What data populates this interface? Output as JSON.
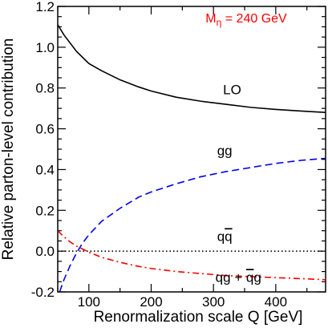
{
  "chart_data": {
    "type": "line",
    "annotation": {
      "text": "M",
      "subscript": "η",
      "suffix": " = 240 GeV",
      "color": "#ff0000"
    },
    "xlabel": "Renormalization scale Q  [GeV]",
    "ylabel": "Relative parton-level contribution",
    "xlim": [
      50,
      480
    ],
    "ylim": [
      -0.2,
      1.2
    ],
    "xticks": [
      100,
      200,
      300,
      400
    ],
    "xtick_labels": [
      "100",
      "200",
      "300",
      "400"
    ],
    "yticks": [
      -0.2,
      0.0,
      0.2,
      0.4,
      0.6,
      0.8,
      1.0,
      1.2
    ],
    "ytick_labels": [
      "-0.2",
      "0.0",
      "0.2",
      "0.4",
      "0.6",
      "0.8",
      "1.0",
      "1.2"
    ],
    "grid": false,
    "series": [
      {
        "name": "LO",
        "color": "#000000",
        "style": "solid",
        "x": [
          50,
          60,
          80,
          100,
          120,
          150,
          180,
          200,
          240,
          280,
          320,
          360,
          400,
          440,
          480
        ],
        "y": [
          1.11,
          1.06,
          0.98,
          0.92,
          0.885,
          0.84,
          0.805,
          0.785,
          0.755,
          0.735,
          0.72,
          0.705,
          0.695,
          0.687,
          0.68
        ]
      },
      {
        "name": "gg",
        "color": "#0000ee",
        "style": "dashed",
        "x": [
          53,
          60,
          70,
          80,
          90,
          100,
          120,
          150,
          180,
          200,
          240,
          280,
          320,
          360,
          400,
          440,
          480
        ],
        "y": [
          -0.2,
          -0.14,
          -0.07,
          -0.01,
          0.04,
          0.08,
          0.145,
          0.21,
          0.265,
          0.29,
          0.33,
          0.365,
          0.39,
          0.41,
          0.43,
          0.445,
          0.455
        ]
      },
      {
        "name": "qq̄",
        "color": "#000000",
        "style": "dotted",
        "x": [
          50,
          480
        ],
        "y": [
          0.0,
          0.0
        ]
      },
      {
        "name": "qg + q̄g",
        "color": "#ff0000",
        "style": "dashdot",
        "x": [
          50,
          60,
          70,
          80,
          90,
          100,
          120,
          150,
          180,
          200,
          240,
          280,
          320,
          360,
          400,
          440,
          480
        ],
        "y": [
          0.1,
          0.07,
          0.045,
          0.025,
          0.01,
          -0.005,
          -0.03,
          -0.055,
          -0.075,
          -0.085,
          -0.1,
          -0.11,
          -0.12,
          -0.125,
          -0.13,
          -0.135,
          -0.14
        ]
      }
    ],
    "series_labels": [
      {
        "text": "LO",
        "x": 330,
        "y": 0.77
      },
      {
        "text": "gg",
        "x": 318,
        "y": 0.47
      },
      {
        "text": "q",
        "overline_text": "q",
        "x": 318,
        "y": 0.05
      },
      {
        "text": "qg + ",
        "overline_text": "q",
        "tail_text": "g",
        "x": 340,
        "y": -0.15
      }
    ]
  }
}
